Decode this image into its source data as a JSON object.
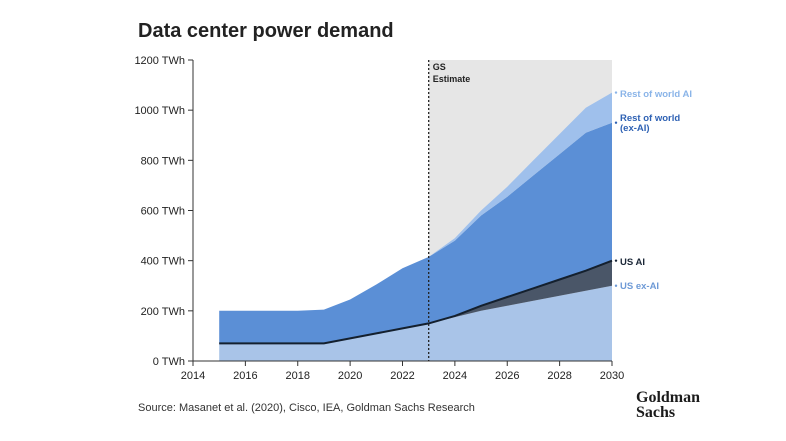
{
  "title": "Data center power demand",
  "source": "Source: Masanet et al. (2020), Cisco, IEA, Goldman Sachs Research",
  "logo": [
    "Goldman",
    "Sachs"
  ],
  "chart_data": {
    "type": "area",
    "title": "Data center power demand",
    "x": [
      2015,
      2016,
      2017,
      2018,
      2019,
      2020,
      2021,
      2022,
      2023,
      2024,
      2025,
      2026,
      2027,
      2028,
      2029,
      2030
    ],
    "xticks": [
      2014,
      2016,
      2018,
      2020,
      2022,
      2024,
      2026,
      2028,
      2030
    ],
    "yticks": [
      0,
      200,
      400,
      600,
      800,
      1000,
      1200
    ],
    "ytick_labels": [
      "0 TWh",
      "200 TWh",
      "400 TWh",
      "600 TWh",
      "800 TWh",
      "1000 TWh",
      "1200 TWh"
    ],
    "xlim": [
      2014,
      2030
    ],
    "ylim": [
      0,
      1200
    ],
    "stacking": "stacked",
    "series": [
      {
        "name": "US ex-AI",
        "color": "#a9c4e8",
        "values": [
          70,
          70,
          70,
          70,
          70,
          90,
          110,
          130,
          150,
          175,
          200,
          220,
          240,
          260,
          280,
          300
        ]
      },
      {
        "name": "US AI",
        "color": "#4a5668",
        "values": [
          0,
          0,
          0,
          0,
          0,
          0,
          0,
          0,
          0,
          5,
          20,
          35,
          50,
          65,
          80,
          100
        ]
      },
      {
        "name": "Rest of world (ex-AI)",
        "color": "#5b8fd6",
        "values": [
          130,
          130,
          130,
          130,
          135,
          155,
          195,
          240,
          265,
          300,
          360,
          400,
          450,
          500,
          550,
          550
        ]
      },
      {
        "name": "Rest of world AI",
        "color": "#9fc0ec",
        "values": [
          0,
          0,
          0,
          0,
          0,
          0,
          0,
          0,
          0,
          10,
          20,
          40,
          60,
          80,
          100,
          120
        ]
      }
    ],
    "estimate_start": 2023,
    "estimate_label": [
      "GS",
      "Estimate"
    ],
    "legend": "right, inline at series ends"
  }
}
